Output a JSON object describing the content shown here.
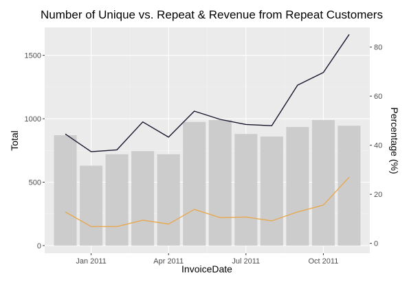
{
  "chart_data": {
    "type": "bar",
    "title": "Number of Unique vs. Repeat & Revenue from Repeat Customers",
    "xlabel": "InvoiceDate",
    "ylabel": "Total",
    "y2label": "Percentage (%)",
    "ylim": [
      -60,
      1720
    ],
    "y2lim": [
      -4,
      88
    ],
    "yticks": [
      0,
      500,
      1000,
      1500
    ],
    "y2ticks": [
      0,
      20,
      40,
      60,
      80
    ],
    "xticks": [
      {
        "label": "Jan 2011",
        "month_index": 1
      },
      {
        "label": "Apr 2011",
        "month_index": 4
      },
      {
        "label": "Jul 2011",
        "month_index": 7
      },
      {
        "label": "Oct 2011",
        "month_index": 10
      }
    ],
    "months": [
      "2010-12",
      "2011-01",
      "2011-02",
      "2011-03",
      "2011-04",
      "2011-05",
      "2011-06",
      "2011-07",
      "2011-08",
      "2011-09",
      "2011-10",
      "2011-11"
    ],
    "series": [
      {
        "type": "bar",
        "axis": "left",
        "color": "#cccccc",
        "values": [
          870,
          630,
          720,
          745,
          720,
          975,
          990,
          880,
          860,
          935,
          990,
          945
        ]
      },
      {
        "type": "line",
        "axis": "left",
        "color": "#14142b",
        "values": [
          880,
          740,
          755,
          975,
          855,
          1060,
          995,
          955,
          945,
          1265,
          1365,
          1665
        ]
      },
      {
        "type": "line",
        "axis": "left",
        "color": "#e8a850",
        "values": [
          265,
          150,
          150,
          200,
          170,
          285,
          220,
          225,
          195,
          265,
          320,
          540
        ]
      }
    ],
    "grid": true,
    "legend": "none"
  },
  "colors": {
    "panel_background": "#ebebeb",
    "grid_major": "#ffffff",
    "grid_minor": "#f2f2f2"
  }
}
